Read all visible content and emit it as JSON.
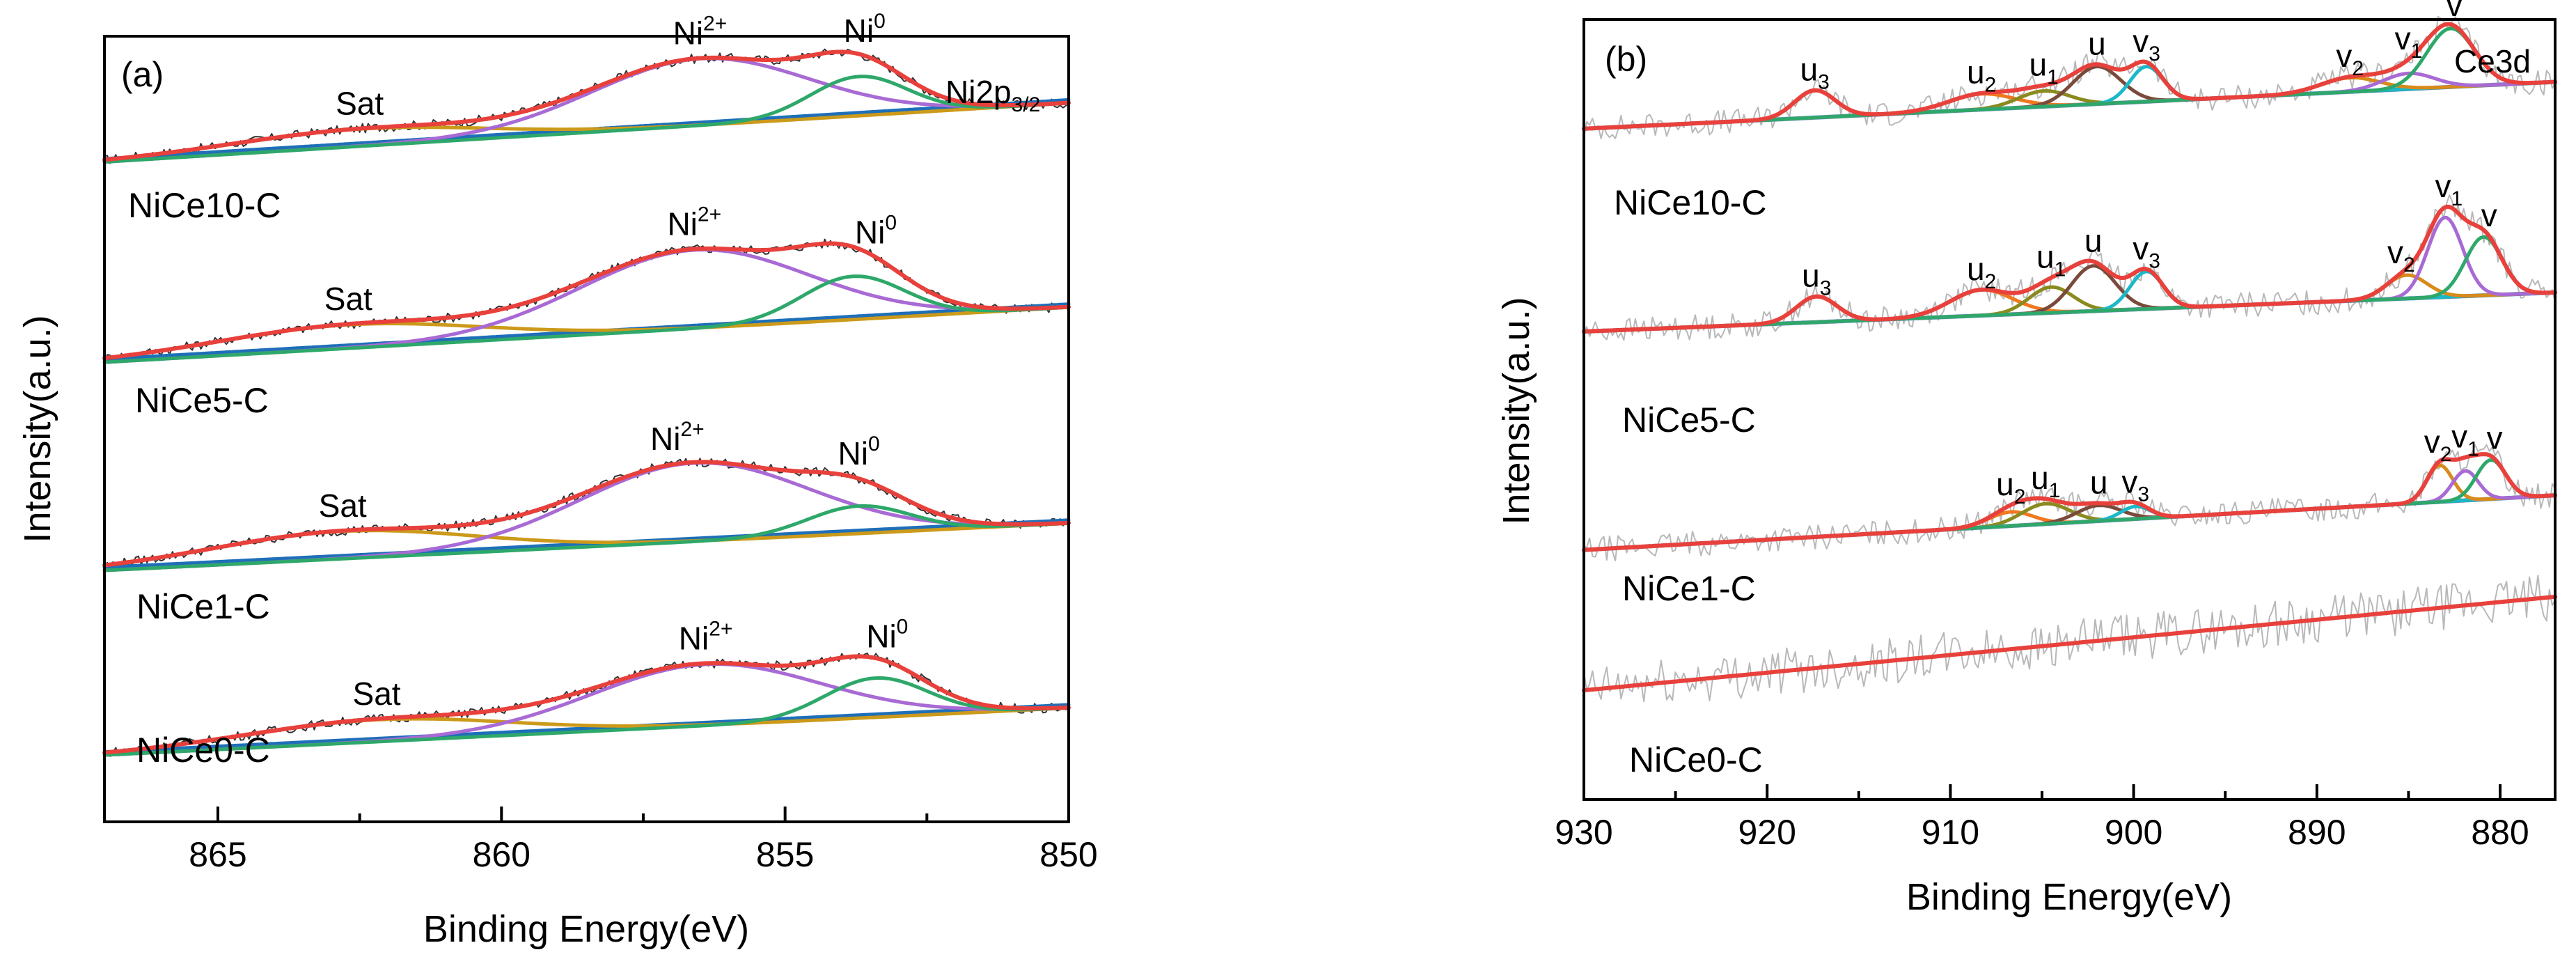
{
  "chart_data": [
    {
      "panel": "(a)",
      "type": "line",
      "title": "Ni2p3/2",
      "title_main": "Ni2p",
      "title_sub": "3/2",
      "xlabel": "Binding Energy(eV)",
      "ylabel": "Intensity(a.u.)",
      "xlim": [
        867,
        850
      ],
      "x_reversed": true,
      "xticks": [
        865,
        860,
        855,
        850
      ],
      "xtick_labels": [
        "865",
        "860",
        "855",
        "850"
      ],
      "component_colors": {
        "envelope": "#e8413c",
        "Ni2+": "#a86ad4",
        "Ni0": "#2ea86a",
        "Sat": "#cc9a1a",
        "background": "#1e6fb8",
        "raw": "#333333"
      },
      "series": [
        {
          "name": "NiCe10-C",
          "offset": 0.84,
          "background": [
            0.0,
            0.075
          ],
          "Ni2+": {
            "center": 856.5,
            "amp": 0.085,
            "width": 1.9
          },
          "Ni0": {
            "center": 853.7,
            "amp": 0.05,
            "width": 0.85
          },
          "Sat": {
            "center": 862.5,
            "amp": 0.022,
            "width": 2.2
          }
        },
        {
          "name": "NiCe5-C",
          "offset": 0.585,
          "background": [
            0.0,
            0.07
          ],
          "Ni2+": {
            "center": 856.6,
            "amp": 0.1,
            "width": 2.0
          },
          "Ni0": {
            "center": 853.8,
            "amp": 0.055,
            "width": 0.9
          },
          "Sat": {
            "center": 862.7,
            "amp": 0.03,
            "width": 2.3
          }
        },
        {
          "name": "NiCe1-C",
          "offset": 0.32,
          "background": [
            0.0,
            0.06
          ],
          "Ni2+": {
            "center": 856.6,
            "amp": 0.1,
            "width": 2.0
          },
          "Ni0": {
            "center": 853.7,
            "amp": 0.035,
            "width": 0.9
          },
          "Sat": {
            "center": 862.8,
            "amp": 0.035,
            "width": 2.3
          }
        },
        {
          "name": "NiCe0-C",
          "offset": 0.085,
          "background": [
            0.0,
            0.06
          ],
          "Ni2+": {
            "center": 856.4,
            "amp": 0.078,
            "width": 2.0
          },
          "Ni0": {
            "center": 853.4,
            "amp": 0.05,
            "width": 0.9
          },
          "Sat": {
            "center": 862.2,
            "amp": 0.028,
            "width": 2.3
          }
        }
      ],
      "annotations": [
        {
          "series": "NiCe10-C",
          "items": [
            {
              "main": "Sat",
              "x": 862.5
            },
            {
              "main": "Ni",
              "sup": "2+",
              "x": 856.5
            },
            {
              "main": "Ni",
              "sup": "0",
              "x": 853.6
            }
          ]
        },
        {
          "series": "NiCe5-C",
          "items": [
            {
              "main": "Sat",
              "x": 862.7
            },
            {
              "main": "Ni",
              "sup": "2+",
              "x": 856.6
            },
            {
              "main": "Ni",
              "sup": "0",
              "x": 853.4
            }
          ]
        },
        {
          "series": "NiCe1-C",
          "items": [
            {
              "main": "Sat",
              "x": 862.8
            },
            {
              "main": "Ni",
              "sup": "2+",
              "x": 856.9
            },
            {
              "main": "Ni",
              "sup": "0",
              "x": 853.7
            }
          ]
        },
        {
          "series": "NiCe0-C",
          "items": [
            {
              "main": "Sat",
              "x": 862.2
            },
            {
              "main": "Ni",
              "sup": "2+",
              "x": 856.4
            },
            {
              "main": "Ni",
              "sup": "0",
              "x": 853.2
            }
          ]
        }
      ]
    },
    {
      "panel": "(b)",
      "type": "line",
      "title": "Ce3d",
      "xlabel": "Binding Energy(eV)",
      "ylabel": "Intensity(a.u.)",
      "xlim": [
        930,
        877
      ],
      "x_reversed": true,
      "xticks": [
        930,
        920,
        910,
        900,
        890,
        880
      ],
      "xtick_labels": [
        "930",
        "920",
        "910",
        "900",
        "890",
        "880"
      ],
      "component_colors": {
        "envelope": "#e8413c",
        "u3": "#5b8fd0",
        "u2": "#f0781e",
        "u1": "#8a8a1e",
        "u": "#7a4a3a",
        "v3": "#1ab8c8",
        "v2": "#d88a1a",
        "v1": "#a86ad4",
        "v": "#2ea86a",
        "background": "#5b8fd0",
        "raw": "#b8b8b8"
      },
      "series": [
        {
          "name": "NiCe10-C",
          "offset": 0.86,
          "background": [
            0.0,
            0.06
          ],
          "peaks": [
            {
              "label": "u3",
              "center": 917.4,
              "amp": 0.035,
              "width": 1.1
            },
            {
              "label": "u2",
              "center": 908.3,
              "amp": 0.02,
              "width": 1.8
            },
            {
              "label": "u1",
              "center": 904.9,
              "amp": 0.02,
              "width": 1.4
            },
            {
              "label": "u",
              "center": 902.0,
              "amp": 0.048,
              "width": 1.3
            },
            {
              "label": "v3",
              "center": 899.3,
              "amp": 0.045,
              "width": 0.9
            },
            {
              "label": "v2",
              "center": 888.2,
              "amp": 0.018,
              "width": 1.6
            },
            {
              "label": "v1",
              "center": 885.0,
              "amp": 0.02,
              "width": 1.4
            },
            {
              "label": "v",
              "center": 882.7,
              "amp": 0.075,
              "width": 1.3
            }
          ]
        },
        {
          "name": "NiCe5-C",
          "offset": 0.6,
          "background": [
            0.0,
            0.05
          ],
          "peaks": [
            {
              "label": "u3",
              "center": 917.3,
              "amp": 0.033,
              "width": 1.1
            },
            {
              "label": "u2",
              "center": 908.3,
              "amp": 0.033,
              "width": 1.7
            },
            {
              "label": "u1",
              "center": 904.5,
              "amp": 0.033,
              "width": 1.2
            },
            {
              "label": "u",
              "center": 902.2,
              "amp": 0.058,
              "width": 1.2
            },
            {
              "label": "v3",
              "center": 899.3,
              "amp": 0.048,
              "width": 0.9
            },
            {
              "label": "v2",
              "center": 885.1,
              "amp": 0.03,
              "width": 1.1
            },
            {
              "label": "v1",
              "center": 883.0,
              "amp": 0.102,
              "width": 0.95
            },
            {
              "label": "v",
              "center": 880.9,
              "amp": 0.075,
              "width": 1.0
            }
          ]
        },
        {
          "name": "NiCe1-C",
          "offset": 0.32,
          "background": [
            0.0,
            0.07
          ],
          "peaks": [
            {
              "label": "u2",
              "center": 906.7,
              "amp": 0.018,
              "width": 1.2
            },
            {
              "label": "u1",
              "center": 904.8,
              "amp": 0.026,
              "width": 1.3
            },
            {
              "label": "u",
              "center": 901.9,
              "amp": 0.02,
              "width": 1.2
            },
            {
              "label": "v3",
              "center": 899.9,
              "amp": 0.016,
              "width": 0.8
            },
            {
              "label": "v2",
              "center": 883.3,
              "amp": 0.047,
              "width": 0.7
            },
            {
              "label": "v1",
              "center": 881.9,
              "amp": 0.038,
              "width": 0.7
            },
            {
              "label": "v",
              "center": 880.5,
              "amp": 0.05,
              "width": 0.8
            }
          ]
        },
        {
          "name": "NiCe0-C",
          "offset": 0.14,
          "background": [
            0.0,
            0.12
          ],
          "peaks": []
        }
      ],
      "annotations": [
        {
          "series": "NiCe10-C",
          "items": [
            {
              "main": "u",
              "sub": "3",
              "x": 917.4
            },
            {
              "main": "u",
              "sub": "2",
              "x": 908.3
            },
            {
              "main": "u",
              "sub": "1",
              "x": 904.9
            },
            {
              "main": "u",
              "x": 902.0
            },
            {
              "main": "v",
              "sub": "3",
              "x": 899.3
            },
            {
              "main": "v",
              "sub": "2",
              "x": 888.2
            },
            {
              "main": "v",
              "sub": "1",
              "x": 885.0
            },
            {
              "main": "v",
              "x": 882.5
            }
          ]
        },
        {
          "series": "NiCe5-C",
          "items": [
            {
              "main": "u",
              "sub": "3",
              "x": 917.3
            },
            {
              "main": "u",
              "sub": "2",
              "x": 908.3
            },
            {
              "main": "u",
              "sub": "1",
              "x": 904.5
            },
            {
              "main": "u",
              "x": 902.2
            },
            {
              "main": "v",
              "sub": "3",
              "x": 899.3
            },
            {
              "main": "v",
              "sub": "2",
              "x": 885.4
            },
            {
              "main": "v",
              "sub": "1",
              "x": 882.8
            },
            {
              "main": "v",
              "x": 880.6
            }
          ]
        },
        {
          "series": "NiCe1-C",
          "items": [
            {
              "main": "u",
              "sub": "2",
              "x": 906.7
            },
            {
              "main": "u",
              "sub": "1",
              "x": 904.8
            },
            {
              "main": "u",
              "x": 901.9
            },
            {
              "main": "v",
              "sub": "3",
              "x": 899.9
            },
            {
              "main": "v",
              "sub": "2",
              "x": 883.4
            },
            {
              "main": "v",
              "sub": "1",
              "x": 881.9
            },
            {
              "main": "v",
              "x": 880.3
            }
          ]
        }
      ]
    }
  ]
}
